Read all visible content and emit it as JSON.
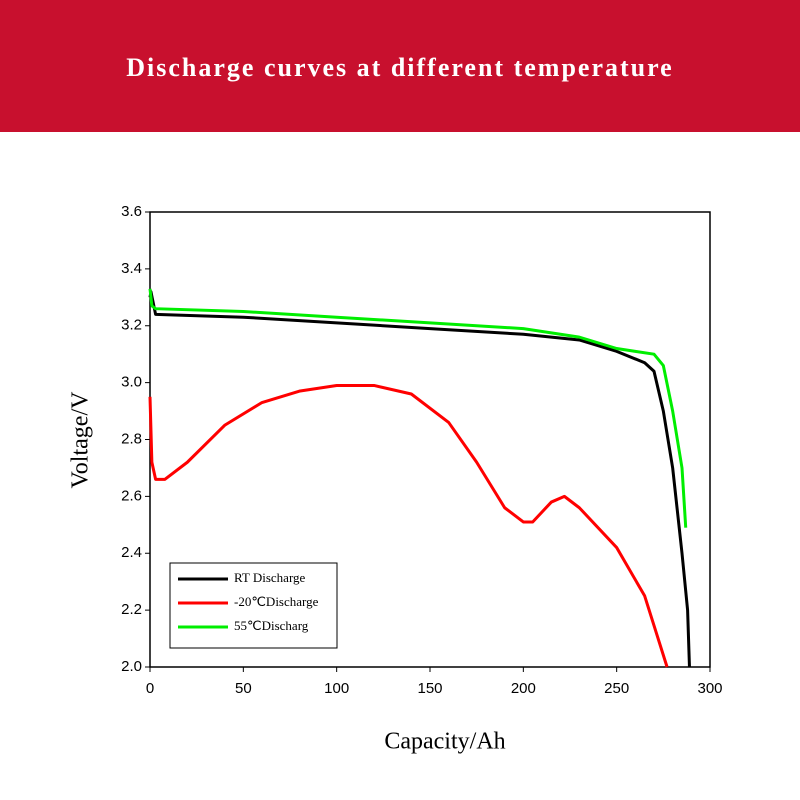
{
  "chart_data": {
    "type": "line",
    "title": "Discharge curves at different temperature",
    "xlabel": "Capacity/Ah",
    "ylabel": "Voltage/V",
    "xlim": [
      0,
      300
    ],
    "ylim": [
      2.0,
      3.6
    ],
    "xticks": [
      0,
      50,
      100,
      150,
      200,
      250,
      300
    ],
    "yticks": [
      {
        "value": 2.0,
        "label": "2.0"
      },
      2.2,
      2.4,
      2.6,
      2.8,
      {
        "value": 3.0,
        "label": "3.0"
      },
      3.2,
      3.4,
      3.6
    ],
    "legend": "lower left",
    "series": [
      {
        "name": "RT Discharge",
        "color": "#000000",
        "x": [
          0,
          0.5,
          3,
          50,
          100,
          150,
          200,
          230,
          250,
          265,
          270,
          275,
          280,
          285,
          288,
          289
        ],
        "values": [
          3.3,
          3.32,
          3.24,
          3.23,
          3.21,
          3.19,
          3.17,
          3.15,
          3.11,
          3.07,
          3.04,
          2.9,
          2.7,
          2.4,
          2.2,
          2.0
        ]
      },
      {
        "name": "-20℃Discharge",
        "color": "#ff0000",
        "x": [
          0,
          1,
          3,
          8,
          20,
          40,
          60,
          80,
          100,
          120,
          140,
          160,
          175,
          190,
          200,
          205,
          215,
          222,
          230,
          250,
          265,
          277
        ],
        "values": [
          2.95,
          2.72,
          2.66,
          2.66,
          2.72,
          2.85,
          2.93,
          2.97,
          2.99,
          2.99,
          2.96,
          2.86,
          2.72,
          2.56,
          2.51,
          2.51,
          2.58,
          2.6,
          2.56,
          2.42,
          2.25,
          2.0
        ]
      },
      {
        "name": "55℃Discharg",
        "color": "#00ee00",
        "x": [
          0,
          1,
          3,
          50,
          100,
          150,
          200,
          230,
          250,
          260,
          270,
          275,
          280,
          285,
          287
        ],
        "values": [
          3.33,
          3.27,
          3.26,
          3.25,
          3.23,
          3.21,
          3.19,
          3.16,
          3.12,
          3.11,
          3.1,
          3.06,
          2.9,
          2.7,
          2.49
        ]
      }
    ]
  }
}
